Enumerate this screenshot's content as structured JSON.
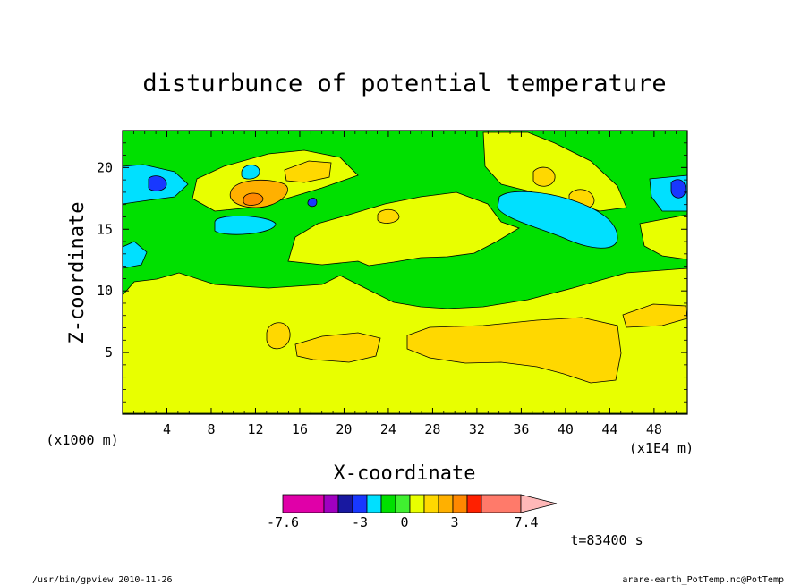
{
  "chart_data": {
    "type": "heatmap",
    "title": "disturbunce of potential temperature",
    "xlabel": "X-coordinate",
    "ylabel": "Z-coordinate",
    "x_unit_note": "(x1E4 m)",
    "y_unit_note": "(x1000 m)",
    "xlim": [
      0,
      51
    ],
    "ylim": [
      0,
      23
    ],
    "x_ticks": [
      "4",
      "8",
      "12",
      "16",
      "20",
      "24",
      "28",
      "32",
      "36",
      "40",
      "44",
      "48"
    ],
    "y_ticks": [
      "5",
      "10",
      "15",
      "20"
    ],
    "colorbar": {
      "labels": [
        "-7.6",
        "-3",
        "0",
        "3",
        "7.4"
      ],
      "colors": [
        "#e000a8",
        "#a000c0",
        "#1818a0",
        "#1838ff",
        "#00e0ff",
        "#00e000",
        "#40f030",
        "#e8ff00",
        "#ffd800",
        "#ffb000",
        "#ff8800",
        "#ff2000",
        "#ff7a6a",
        "#ffb8b8"
      ],
      "extend": "right"
    },
    "time_label": "t=83400 s",
    "regions": [
      {
        "level": "yellow",
        "description": "broad positive band",
        "z_range": [
          0,
          10
        ]
      },
      {
        "level": "orange",
        "description": "positive cells",
        "z_range": [
          2.5,
          6.5
        ]
      },
      {
        "level": "green",
        "description": "near-zero background",
        "z_range": [
          8,
          23
        ]
      },
      {
        "level": "cyan",
        "description": "negative cells",
        "z_range": [
          14,
          20
        ]
      },
      {
        "level": "blue",
        "description": "strong negative cells",
        "z_range": [
          16,
          19
        ]
      },
      {
        "level": "red-orange",
        "description": "strong positive cell",
        "z_range": [
          16.8,
          18.2
        ]
      }
    ]
  },
  "footer": {
    "left": "/usr/bin/gpview   2010-11-26",
    "right": "arare-earth_PotTemp.nc@PotTemp"
  }
}
